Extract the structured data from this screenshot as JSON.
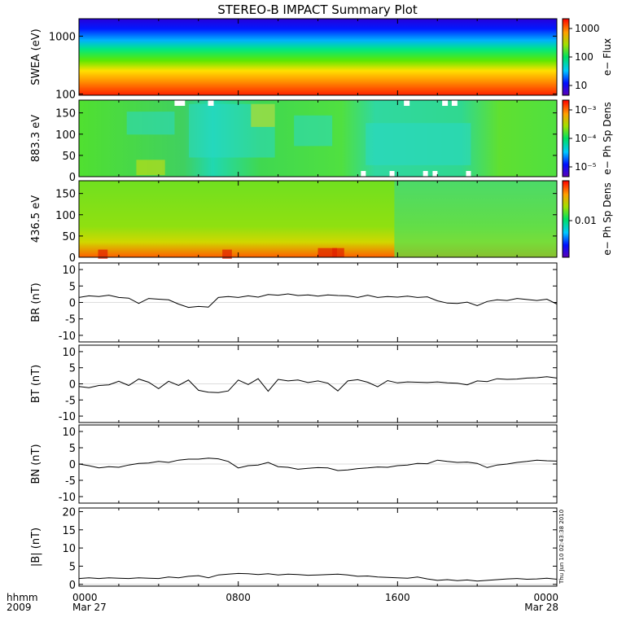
{
  "title": "STEREO-B IMPACT Summary Plot",
  "time_axis": {
    "corner_labels": [
      "hhmm",
      "2009"
    ],
    "ticks": [
      {
        "label": "0000",
        "sub": "Mar 27",
        "hour": 0
      },
      {
        "label": "0800",
        "sub": "",
        "hour": 8
      },
      {
        "label": "1600",
        "sub": "",
        "hour": 16
      },
      {
        "label": "0000",
        "sub": "Mar 28",
        "hour": 24
      }
    ],
    "range_hours": [
      0,
      24
    ]
  },
  "timestamp": "Thu Jun 10 02:43:38 2010",
  "colors": {
    "trace": "#000000",
    "frame": "#000000"
  },
  "colorbars": [
    {
      "panel": 0,
      "label": "e− Flux",
      "ticks": [
        "1000",
        "100",
        "10"
      ]
    },
    {
      "panel": 1,
      "label": "e− Ph Sp Dens",
      "ticks": [
        "10⁻³",
        "10⁻⁴",
        "10⁻⁵"
      ]
    },
    {
      "panel": 2,
      "label": "e− Ph Sp Dens",
      "ticks": [
        "0.01"
      ]
    }
  ],
  "chart_data": [
    {
      "type": "heatmap",
      "name": "swea",
      "ylabel": "SWEA (eV)",
      "yscale": "log",
      "ylim": [
        95,
        2000
      ],
      "ytick_labels": [
        "1000",
        "100"
      ],
      "colorbar_label": "e− Flux",
      "colorbar_range": [
        3,
        3000
      ],
      "colorbar_scale": "log",
      "colorbar_ticks": [
        "1000",
        "100",
        "10"
      ],
      "pattern": "flux decreases monotonically with energy: red/orange near 100 eV, green near 400-600 eV, blue/purple above 1000 eV"
    },
    {
      "type": "heatmap",
      "name": "pad_883",
      "ylabel": "883.3 eV",
      "ylim": [
        0,
        180
      ],
      "ytick_labels": [
        "0",
        "50",
        "100",
        "150"
      ],
      "colorbar_label": "e− Ph Sp Dens",
      "colorbar_range": [
        6e-06,
        0.0025
      ],
      "colorbar_scale": "log",
      "colorbar_ticks": [
        "10⁻³",
        "10⁻⁴",
        "10⁻⁵"
      ],
      "pattern": "mostly green with cyan patches near 0600-0900 and 1500-2000, small data gaps (white) along top and bottom edges"
    },
    {
      "type": "heatmap",
      "name": "pad_436",
      "ylabel": "436.5 eV",
      "ylim": [
        0,
        180
      ],
      "ytick_labels": [
        "0",
        "50",
        "100",
        "150"
      ],
      "colorbar_label": "e− Ph Sp Dens",
      "colorbar_range": [
        0.002,
        0.05
      ],
      "colorbar_scale": "log",
      "colorbar_ticks": [
        "0.01"
      ],
      "pattern": "yellow-green with strong red/orange enhancement at pitch angles 0-30 deg from 0000 to 1500; greener and cyan after 1500"
    },
    {
      "type": "line",
      "name": "BR",
      "ylabel": "BR (nT)",
      "ylim": [
        -12,
        12
      ],
      "ytick_labels": [
        "-10",
        "-5",
        "0",
        "5",
        "10"
      ],
      "x_hours": [
        0,
        0.5,
        1,
        1.5,
        2,
        2.5,
        3,
        3.5,
        4,
        4.5,
        5,
        5.5,
        6,
        6.5,
        7,
        7.5,
        8,
        8.5,
        9,
        9.5,
        10,
        10.5,
        11,
        11.5,
        12,
        12.5,
        13,
        13.5,
        14,
        14.5,
        15,
        15.5,
        16,
        16.5,
        17,
        17.5,
        18,
        18.5,
        19,
        19.5,
        20,
        20.5,
        21,
        21.5,
        22,
        22.5,
        23,
        23.5,
        24
      ],
      "values": [
        1.5,
        2,
        1.8,
        2.2,
        1.5,
        1.3,
        -0.3,
        1.2,
        1,
        0.8,
        -0.5,
        -1.5,
        -1.2,
        -1.4,
        1.5,
        1.8,
        1.5,
        2,
        1.6,
        2.4,
        2.2,
        2.6,
        2.1,
        2.3,
        1.9,
        2.3,
        2.1,
        2,
        1.5,
        2.2,
        1.5,
        1.8,
        1.6,
        1.9,
        1.5,
        1.7,
        0.5,
        -0.2,
        -0.3,
        0.1,
        -1,
        0.3,
        0.8,
        0.6,
        1.2,
        0.9,
        0.6,
        1,
        -0.5
      ]
    },
    {
      "type": "line",
      "name": "BT",
      "ylabel": "BT (nT)",
      "ylim": [
        -12,
        12
      ],
      "ytick_labels": [
        "-10",
        "-5",
        "0",
        "5",
        "10"
      ],
      "x_hours": [
        0,
        0.5,
        1,
        1.5,
        2,
        2.5,
        3,
        3.5,
        4,
        4.5,
        5,
        5.5,
        6,
        6.5,
        7,
        7.5,
        8,
        8.5,
        9,
        9.5,
        10,
        10.5,
        11,
        11.5,
        12,
        12.5,
        13,
        13.5,
        14,
        14.5,
        15,
        15.5,
        16,
        16.5,
        17,
        17.5,
        18,
        18.5,
        19,
        19.5,
        20,
        20.5,
        21,
        21.5,
        22,
        22.5,
        23,
        23.5,
        24
      ],
      "values": [
        -0.8,
        -1.2,
        -0.5,
        -0.3,
        0.8,
        -0.5,
        1.5,
        0.5,
        -1.5,
        0.8,
        -0.5,
        1.2,
        -2,
        -2.6,
        -2.7,
        -2.2,
        1.2,
        -0.2,
        1.6,
        -2.3,
        1.4,
        0.9,
        1.2,
        0.4,
        0.9,
        0.2,
        -2.2,
        0.9,
        1.3,
        0.5,
        -0.9,
        1,
        0.3,
        0.6,
        0.5,
        0.4,
        0.6,
        0.3,
        0.2,
        -0.3,
        0.9,
        0.7,
        1.6,
        1.4,
        1.5,
        1.8,
        1.9,
        2.2,
        1.8
      ]
    },
    {
      "type": "line",
      "name": "BN",
      "ylabel": "BN (nT)",
      "ylim": [
        -12,
        12
      ],
      "ytick_labels": [
        "-10",
        "-5",
        "0",
        "5",
        "10"
      ],
      "x_hours": [
        0,
        0.5,
        1,
        1.5,
        2,
        2.5,
        3,
        3.5,
        4,
        4.5,
        5,
        5.5,
        6,
        6.5,
        7,
        7.5,
        8,
        8.5,
        9,
        9.5,
        10,
        10.5,
        11,
        11.5,
        12,
        12.5,
        13,
        13.5,
        14,
        14.5,
        15,
        15.5,
        16,
        16.5,
        17,
        17.5,
        18,
        18.5,
        19,
        19.5,
        20,
        20.5,
        21,
        21.5,
        22,
        22.5,
        23,
        23.5,
        24
      ],
      "values": [
        0,
        -0.5,
        -1.2,
        -0.8,
        -1,
        -0.3,
        0.2,
        0.3,
        0.8,
        0.5,
        1.2,
        1.5,
        1.5,
        1.8,
        1.6,
        0.8,
        -1.2,
        -0.5,
        -0.3,
        0.5,
        -0.8,
        -1,
        -1.6,
        -1.3,
        -1.1,
        -1.2,
        -2,
        -1.8,
        -1.4,
        -1.2,
        -0.9,
        -1,
        -0.5,
        -0.3,
        0.2,
        0.1,
        1.2,
        0.8,
        0.5,
        0.6,
        0.2,
        -1.1,
        -0.3,
        0,
        0.5,
        0.8,
        1.2,
        1,
        0.9
      ]
    },
    {
      "type": "line",
      "name": "Bmag",
      "ylabel": "|B| (nT)",
      "ylim": [
        -0.5,
        21
      ],
      "ytick_labels": [
        "0",
        "5",
        "10",
        "15",
        "20"
      ],
      "x_hours": [
        0,
        0.5,
        1,
        1.5,
        2,
        2.5,
        3,
        3.5,
        4,
        4.5,
        5,
        5.5,
        6,
        6.5,
        7,
        7.5,
        8,
        8.5,
        9,
        9.5,
        10,
        10.5,
        11,
        11.5,
        12,
        12.5,
        13,
        13.5,
        14,
        14.5,
        15,
        15.5,
        16,
        16.5,
        17,
        17.5,
        18,
        18.5,
        19,
        19.5,
        20,
        20.5,
        21,
        21.5,
        22,
        22.5,
        23,
        23.5,
        24
      ],
      "values": [
        1.6,
        1.8,
        1.6,
        1.8,
        1.7,
        1.6,
        1.8,
        1.7,
        1.6,
        2,
        1.8,
        2.2,
        2.4,
        1.8,
        2.6,
        2.8,
        3,
        2.9,
        2.7,
        2.9,
        2.6,
        2.8,
        2.7,
        2.5,
        2.6,
        2.7,
        2.8,
        2.6,
        2.2,
        2.3,
        2,
        1.9,
        1.8,
        1.7,
        2,
        1.5,
        1.1,
        1.3,
        1,
        1.2,
        0.9,
        1.1,
        1.3,
        1.5,
        1.6,
        1.4,
        1.5,
        1.7,
        1.4
      ]
    }
  ]
}
